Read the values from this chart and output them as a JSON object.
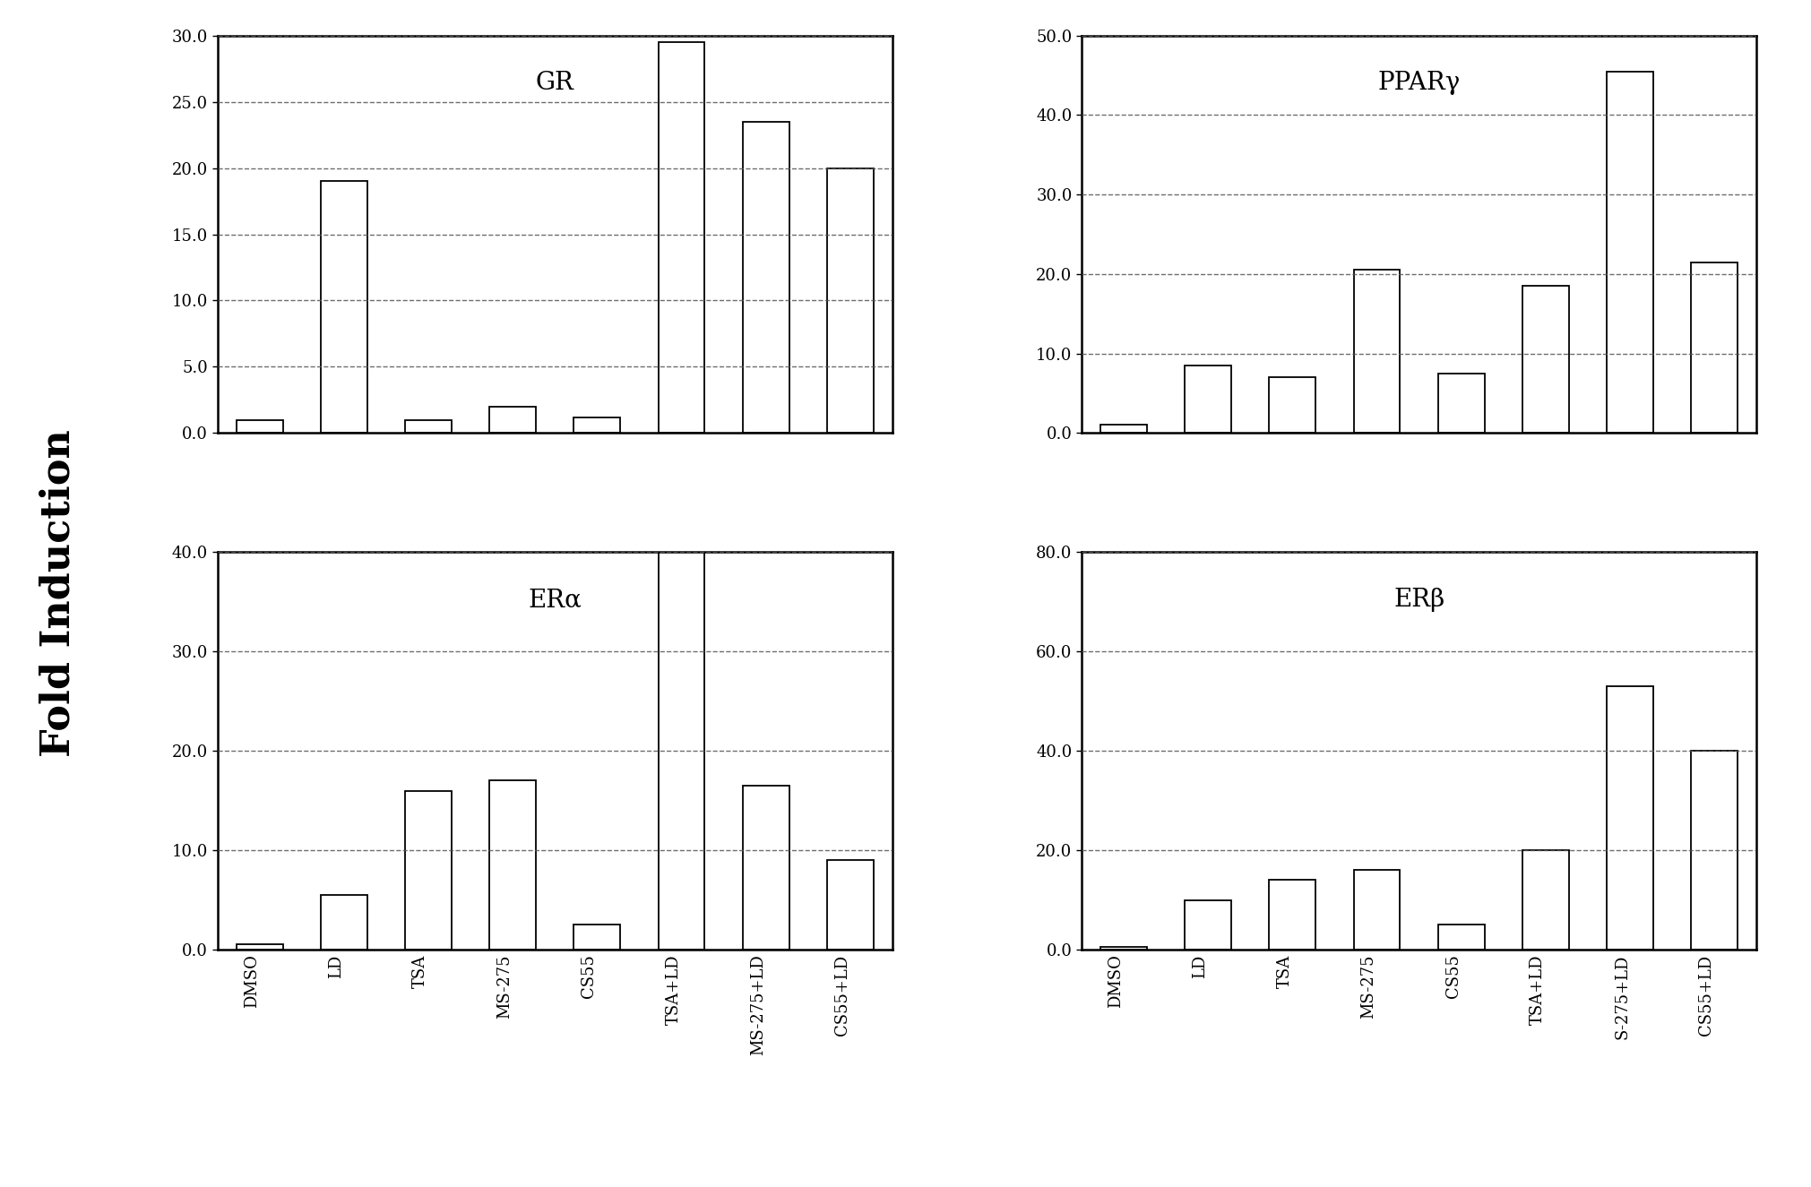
{
  "panels": [
    {
      "title": "GR",
      "categories": [
        "DMSO",
        "LD",
        "TSA",
        "MS-275",
        "CS55",
        "TSA+LD",
        "MS-275+LD",
        "CS55+LD"
      ],
      "values": [
        1.0,
        19.0,
        1.0,
        2.0,
        1.2,
        29.5,
        23.5,
        20.0
      ],
      "ylim": [
        0,
        30.0
      ],
      "yticks": [
        0.0,
        5.0,
        10.0,
        15.0,
        20.0,
        25.0,
        30.0
      ],
      "ytick_labels": [
        "0.0",
        "5.0",
        "10.0",
        "15.0",
        "20.0",
        "25.0",
        "30.0"
      ]
    },
    {
      "title": "PPARγ",
      "categories": [
        "DMSO",
        "LD",
        "TSA",
        "MS-275",
        "CS55",
        "TSA+LD",
        "MS-275+LD",
        "CS55+LD"
      ],
      "values": [
        1.0,
        8.5,
        7.0,
        20.5,
        7.5,
        18.5,
        45.5,
        21.5
      ],
      "ylim": [
        0,
        50.0
      ],
      "yticks": [
        0.0,
        10.0,
        20.0,
        30.0,
        40.0,
        50.0
      ],
      "ytick_labels": [
        "0.0",
        "10.0",
        "20.0",
        "30.0",
        "40.0",
        "50.0"
      ]
    },
    {
      "title": "ERα",
      "categories": [
        "DMSO",
        "LD",
        "TSA",
        "MS-275",
        "CS55",
        "TSA+LD",
        "MS-275+LD",
        "CS55+LD"
      ],
      "values": [
        0.5,
        5.5,
        16.0,
        17.0,
        2.5,
        40.0,
        16.5,
        9.0
      ],
      "ylim": [
        0,
        40.0
      ],
      "yticks": [
        0.0,
        10.0,
        20.0,
        30.0,
        40.0
      ],
      "ytick_labels": [
        "0.0",
        "10.0",
        "20.0",
        "30.0",
        "40.0"
      ]
    },
    {
      "title": "ERβ",
      "categories": [
        "DMSO",
        "LD",
        "TSA",
        "MS-275",
        "CS55",
        "TSA+LD",
        "S-275+LD",
        "CS55+LD"
      ],
      "values": [
        0.5,
        10.0,
        14.0,
        16.0,
        5.0,
        20.0,
        53.0,
        40.0
      ],
      "ylim": [
        0,
        80.0
      ],
      "yticks": [
        0.0,
        20.0,
        40.0,
        60.0,
        80.0
      ],
      "ytick_labels": [
        "0.0",
        "20.0",
        "40.0",
        "60.0",
        "80.0"
      ]
    }
  ],
  "ylabel": "Fold Induction",
  "bar_color": "white",
  "bar_edgecolor": "black",
  "background_color": "white",
  "grid_color": "#555555",
  "panel_title_fontsize": 20,
  "tick_fontsize": 13,
  "ylabel_fontsize": 32,
  "bar_width": 0.55,
  "fig_width": 20.21,
  "fig_height": 13.25,
  "dpi": 100
}
